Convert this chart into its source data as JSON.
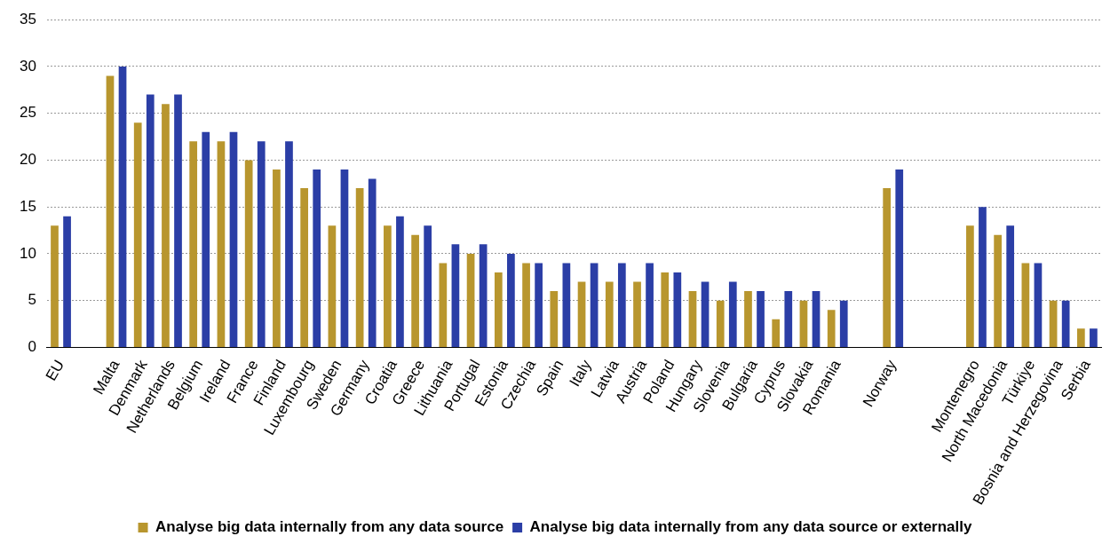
{
  "chart_data": {
    "type": "bar",
    "categories": [
      "EU",
      null,
      "Malta",
      "Denmark",
      "Netherlands",
      "Belgium",
      "Ireland",
      "France",
      "Finland",
      "Luxembourg",
      "Sweden",
      "Germany",
      "Croatia",
      "Greece",
      "Lithuania",
      "Portugal",
      "Estonia",
      "Czechia",
      "Spain",
      "Italy",
      "Latvia",
      "Austria",
      "Poland",
      "Hungary",
      "Slovenia",
      "Bulgaria",
      "Cyprus",
      "Slovakia",
      "Romania",
      null,
      "Norway",
      null,
      null,
      "Montenegro",
      "North Macedonia",
      "Türkiye",
      "Bosnia and Herzegovina",
      "Serbia"
    ],
    "series": [
      {
        "name": "Analyse big data internally from any data source",
        "color": "#b8962e",
        "values": [
          13,
          null,
          29,
          24,
          26,
          22,
          22,
          20,
          19,
          17,
          13,
          17,
          13,
          12,
          9,
          10,
          8,
          9,
          6,
          7,
          7,
          7,
          8,
          6,
          5,
          6,
          3,
          5,
          4,
          null,
          17,
          null,
          null,
          13,
          12,
          9,
          5,
          2
        ]
      },
      {
        "name": "Analyse big data internally from any data source or externally",
        "color": "#2b3ea6",
        "values": [
          14,
          null,
          30,
          27,
          27,
          23,
          23,
          22,
          22,
          19,
          19,
          18,
          14,
          13,
          11,
          11,
          10,
          9,
          9,
          9,
          9,
          9,
          8,
          7,
          7,
          6,
          6,
          6,
          5,
          null,
          19,
          null,
          null,
          15,
          13,
          9,
          5,
          2
        ]
      }
    ],
    "ylim": [
      0,
      35
    ],
    "yticks": [
      0,
      5,
      10,
      15,
      20,
      25,
      30,
      35
    ],
    "grid": "y",
    "legend": "bottom"
  }
}
